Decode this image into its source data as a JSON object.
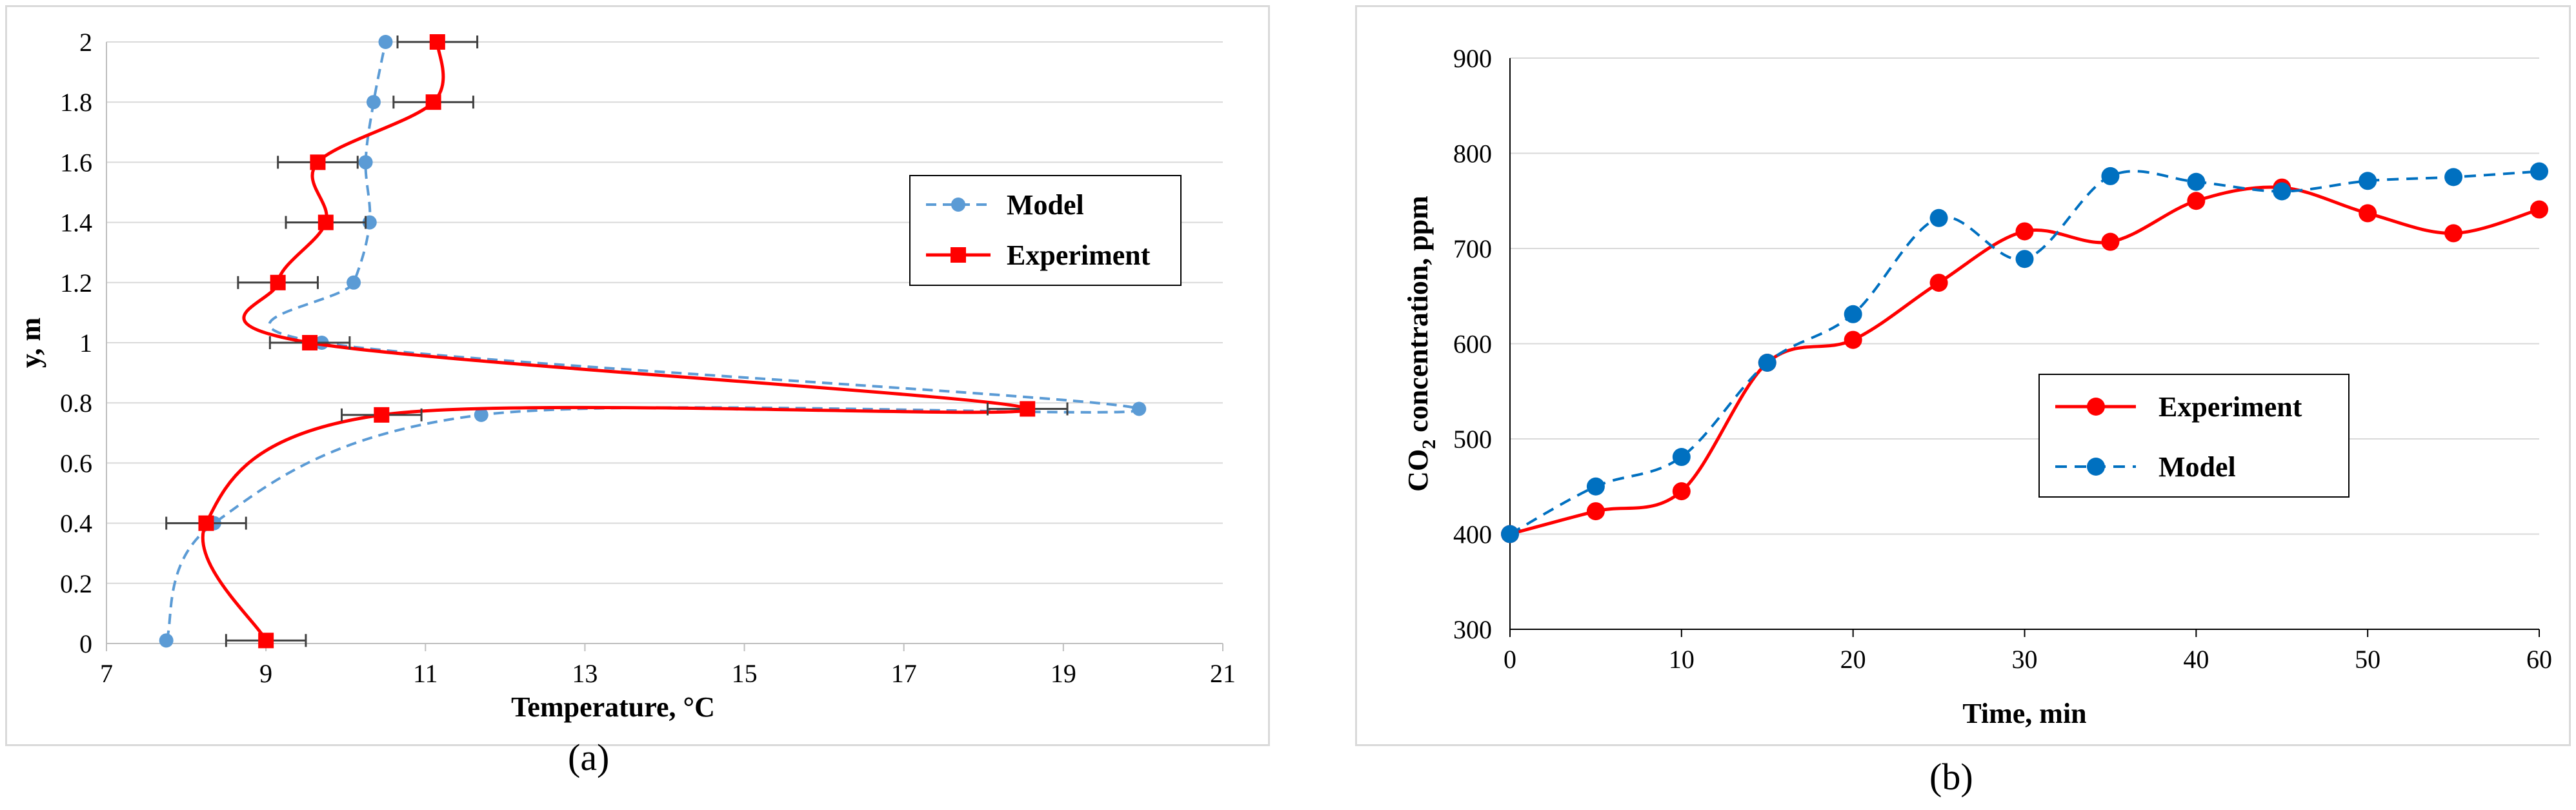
{
  "panels": {
    "a": {
      "caption": "(a)"
    },
    "b": {
      "caption": "(b)"
    }
  },
  "chart_data": [
    {
      "id": "a",
      "type": "scatter-line",
      "title": "",
      "xlabel": "Temperature, °C",
      "ylabel": "y, m",
      "xlim": [
        7,
        21
      ],
      "ylim": [
        0,
        2
      ],
      "xticks": [
        7,
        9,
        11,
        13,
        15,
        17,
        19,
        21
      ],
      "yticks": [
        0,
        0.2,
        0.4,
        0.6,
        0.8,
        1,
        1.2,
        1.4,
        1.6,
        1.8,
        2
      ],
      "ytick_labels": [
        "0",
        "0.2",
        "0.4",
        "0.6",
        "0.8",
        "1",
        "1.2",
        "1.4",
        "1.6",
        "1.8",
        "2"
      ],
      "grid": "horizontal",
      "legend_position": "right",
      "series": [
        {
          "name": "Model",
          "color": "#5b9bd5",
          "style": "dashed",
          "marker": "circle",
          "points": [
            [
              7.75,
              0.01
            ],
            [
              8.35,
              0.4
            ],
            [
              11.7,
              0.76
            ],
            [
              19.95,
              0.78
            ],
            [
              9.7,
              1.0
            ],
            [
              10.1,
              1.2
            ],
            [
              10.3,
              1.4
            ],
            [
              10.25,
              1.6
            ],
            [
              10.35,
              1.8
            ],
            [
              10.5,
              2.0
            ]
          ]
        },
        {
          "name": "Experiment",
          "color": "#ff0000",
          "style": "solid",
          "marker": "square",
          "xerr": 0.5,
          "points": [
            [
              9.0,
              0.01
            ],
            [
              8.25,
              0.4
            ],
            [
              10.45,
              0.76
            ],
            [
              18.55,
              0.78
            ],
            [
              9.55,
              1.0
            ],
            [
              9.15,
              1.2
            ],
            [
              9.75,
              1.4
            ],
            [
              9.65,
              1.6
            ],
            [
              11.1,
              1.8
            ],
            [
              11.15,
              2.0
            ]
          ]
        }
      ]
    },
    {
      "id": "b",
      "type": "line",
      "title": "",
      "xlabel": "Time, min",
      "ylabel": "CO2 concentration, ppm",
      "ylabel_main": "CO",
      "ylabel_sub": "2",
      "ylabel_rest": " concentration, ppm",
      "xlim": [
        0,
        60
      ],
      "ylim": [
        300,
        900
      ],
      "xticks": [
        0,
        10,
        20,
        30,
        40,
        50,
        60
      ],
      "yticks": [
        300,
        400,
        500,
        600,
        700,
        800,
        900
      ],
      "grid": "horizontal",
      "legend_position": "center",
      "series": [
        {
          "name": "Experiment",
          "color": "#ff0000",
          "style": "solid",
          "marker": "circle",
          "points": [
            [
              0,
              400
            ],
            [
              5,
              424
            ],
            [
              10,
              445
            ],
            [
              15,
              580
            ],
            [
              20,
              604
            ],
            [
              25,
              664
            ],
            [
              30,
              718
            ],
            [
              35,
              707
            ],
            [
              40,
              750
            ],
            [
              45,
              764
            ],
            [
              50,
              737
            ],
            [
              55,
              716
            ],
            [
              60,
              741
            ]
          ]
        },
        {
          "name": "Model",
          "color": "#0070c0",
          "style": "dashed",
          "marker": "circle",
          "points": [
            [
              0,
              400
            ],
            [
              5,
              450
            ],
            [
              10,
              481
            ],
            [
              15,
              580
            ],
            [
              20,
              631
            ],
            [
              25,
              732
            ],
            [
              30,
              689
            ],
            [
              35,
              776
            ],
            [
              40,
              770
            ],
            [
              45,
              760
            ],
            [
              50,
              771
            ],
            [
              55,
              775
            ],
            [
              60,
              781
            ]
          ]
        }
      ]
    }
  ]
}
